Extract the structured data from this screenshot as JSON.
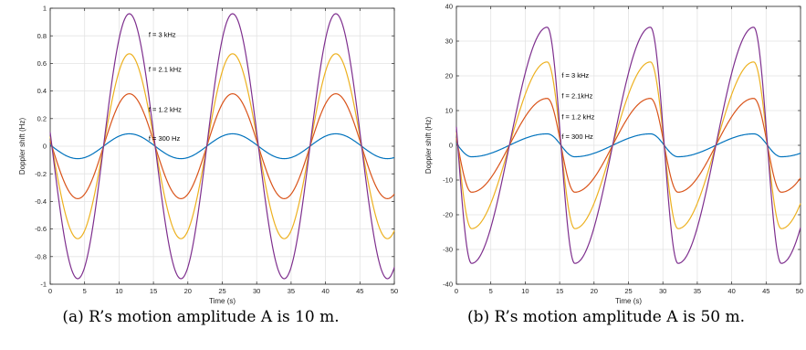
{
  "chart_data": [
    {
      "type": "line",
      "caption": "(a)  R’s motion amplitude A is 10 m.",
      "xlabel": "Time (s)",
      "ylabel": "Doppler shift (Hz)",
      "xlim": [
        0,
        50
      ],
      "ylim": [
        -1,
        1
      ],
      "xticks": [
        0,
        5,
        10,
        15,
        20,
        25,
        30,
        35,
        40,
        45,
        50
      ],
      "yticks": [
        -1,
        -0.8,
        -0.6,
        -0.4,
        -0.2,
        0,
        0.2,
        0.4,
        0.6,
        0.8,
        1
      ],
      "ytick_labels": [
        "-1",
        "-0.8",
        "-0.6",
        "-0.4",
        "-0.2",
        "0",
        "0.2",
        "0.4",
        "0.6",
        "0.8",
        "1"
      ],
      "grid": true,
      "period": 15,
      "series": [
        {
          "label": "f = 300 Hz",
          "color": "#0072BD",
          "amplitude": 0.09,
          "peak_t": 11.5,
          "trough_t": 4.0
        },
        {
          "label": "f = 1.2 kHz",
          "color": "#D95319",
          "amplitude": 0.38,
          "peak_t": 11.5,
          "trough_t": 4.0
        },
        {
          "label": "f = 2.1kHz",
          "color": "#EDB120",
          "amplitude": 0.67,
          "peak_t": 11.5,
          "trough_t": 4.0
        },
        {
          "label": "f = 3 kHz",
          "color": "#7E2F8E",
          "amplitude": 0.96,
          "peak_t": 11.5,
          "trough_t": 4.0
        }
      ],
      "annotations": [
        {
          "text": "f = 3 kHz",
          "x": 14.3,
          "y": 0.79
        },
        {
          "text": "f = 2.1 kHz",
          "x": 14.3,
          "y": 0.54
        },
        {
          "text": "f = 1.2 kHz",
          "x": 14.3,
          "y": 0.25
        },
        {
          "text": "f = 300 Hz",
          "x": 14.3,
          "y": 0.04
        }
      ]
    },
    {
      "type": "line",
      "caption": "(b)  R’s motion amplitude A is 50 m.",
      "xlabel": "Time (s)",
      "ylabel": "Doppler shift (Hz)",
      "xlim": [
        0,
        50
      ],
      "ylim": [
        -40,
        40
      ],
      "xticks": [
        0,
        5,
        10,
        15,
        20,
        25,
        30,
        35,
        40,
        45,
        50
      ],
      "xtick_labels": [
        "0",
        "5",
        "10",
        "15",
        "20",
        "25",
        "30",
        "35",
        "40",
        "45",
        "50"
      ],
      "yticks": [
        -40,
        -30,
        -20,
        -10,
        0,
        10,
        20,
        30,
        40
      ],
      "ytick_labels": [
        "-40",
        "-30",
        "-20",
        "-10",
        "0",
        "10",
        "20",
        "30",
        "40"
      ],
      "grid": true,
      "period": 15,
      "series": [
        {
          "label": "f = 300 Hz",
          "color": "#0072BD",
          "amplitude": 3.3,
          "peak_t": 13.2,
          "trough_t": 2.2
        },
        {
          "label": "f = 1.2 kHz",
          "color": "#D95319",
          "amplitude": 13.5,
          "peak_t": 13.2,
          "trough_t": 2.2
        },
        {
          "label": "f = 2.1kHz",
          "color": "#EDB120",
          "amplitude": 24,
          "peak_t": 13.2,
          "trough_t": 2.2
        },
        {
          "label": "f = 3 kHz",
          "color": "#7E2F8E",
          "amplitude": 34,
          "peak_t": 13.2,
          "trough_t": 2.2
        }
      ],
      "annotations": [
        {
          "text": "f = 3 kHz",
          "x": 15.3,
          "y": 19.5
        },
        {
          "text": "f = 2.1kHz",
          "x": 15.3,
          "y": 13.5
        },
        {
          "text": "f = 1.2  kHz",
          "x": 15.3,
          "y": 7.5
        },
        {
          "text": "f = 300 Hz",
          "x": 15.3,
          "y": 1.8
        }
      ]
    }
  ]
}
